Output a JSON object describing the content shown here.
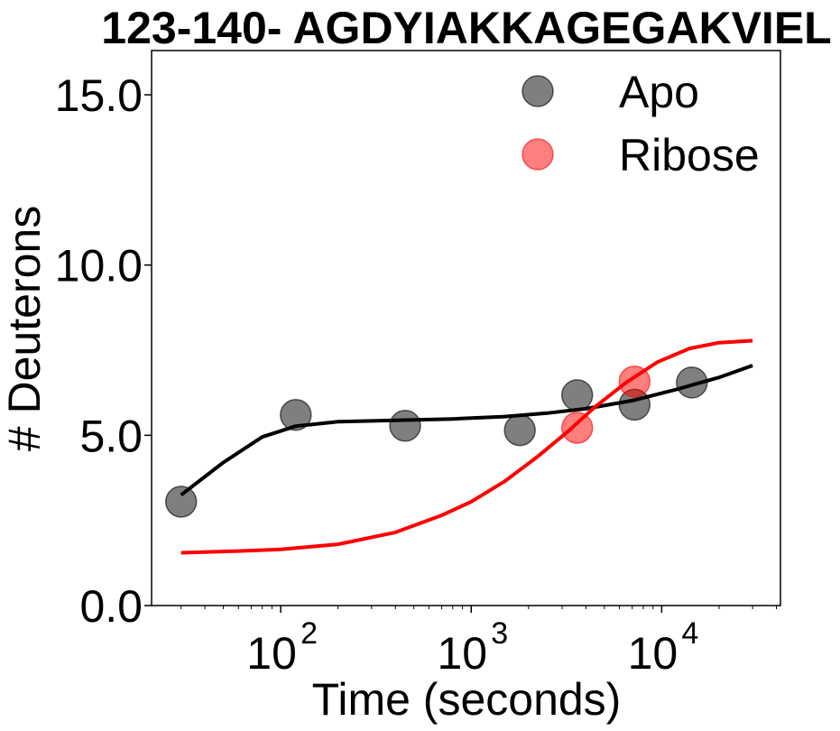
{
  "chart_data": {
    "type": "scatter",
    "title": "123-140- AGDYIAKKAGEGAKVIEL",
    "xlabel": "Time (seconds)",
    "ylabel": "# Deuterons",
    "xscale": "log",
    "xlim": [
      21,
      42000
    ],
    "ylim": [
      0,
      16.3
    ],
    "grid": false,
    "legend_position": "top-right",
    "yticks": [
      0,
      5,
      10,
      15
    ],
    "ytick_labels": [
      "0.0",
      "5.0",
      "10.0",
      "15.0"
    ],
    "xticks": [
      100,
      1000,
      10000
    ],
    "xtick_labels": [
      {
        "base": "10",
        "exp": "2"
      },
      {
        "base": "10",
        "exp": "3"
      },
      {
        "base": "10",
        "exp": "4"
      }
    ],
    "series": [
      {
        "name": "Apo",
        "color": "#000000",
        "marker_opacity": 0.5,
        "points": [
          {
            "x": 30,
            "y": 3.05
          },
          {
            "x": 120,
            "y": 5.6
          },
          {
            "x": 450,
            "y": 5.28
          },
          {
            "x": 1800,
            "y": 5.15
          },
          {
            "x": 3600,
            "y": 6.18
          },
          {
            "x": 7200,
            "y": 5.9
          },
          {
            "x": 14400,
            "y": 6.55
          }
        ],
        "fit": [
          {
            "x": 30,
            "y": 3.25
          },
          {
            "x": 50,
            "y": 4.2
          },
          {
            "x": 80,
            "y": 4.95
          },
          {
            "x": 120,
            "y": 5.27
          },
          {
            "x": 200,
            "y": 5.4
          },
          {
            "x": 400,
            "y": 5.44
          },
          {
            "x": 800,
            "y": 5.48
          },
          {
            "x": 1500,
            "y": 5.55
          },
          {
            "x": 2500,
            "y": 5.65
          },
          {
            "x": 4000,
            "y": 5.78
          },
          {
            "x": 7000,
            "y": 6.02
          },
          {
            "x": 12000,
            "y": 6.35
          },
          {
            "x": 20000,
            "y": 6.7
          },
          {
            "x": 30000,
            "y": 7.05
          }
        ]
      },
      {
        "name": "Ribose",
        "color": "#ff0000",
        "marker_opacity": 0.5,
        "points": [
          {
            "x": 3600,
            "y": 5.22
          },
          {
            "x": 7200,
            "y": 6.58
          }
        ],
        "fit": [
          {
            "x": 30,
            "y": 1.55
          },
          {
            "x": 60,
            "y": 1.6
          },
          {
            "x": 100,
            "y": 1.65
          },
          {
            "x": 200,
            "y": 1.8
          },
          {
            "x": 400,
            "y": 2.15
          },
          {
            "x": 700,
            "y": 2.65
          },
          {
            "x": 1000,
            "y": 3.05
          },
          {
            "x": 1500,
            "y": 3.65
          },
          {
            "x": 2200,
            "y": 4.35
          },
          {
            "x": 3200,
            "y": 5.1
          },
          {
            "x": 4500,
            "y": 5.85
          },
          {
            "x": 6500,
            "y": 6.55
          },
          {
            "x": 9500,
            "y": 7.15
          },
          {
            "x": 14000,
            "y": 7.55
          },
          {
            "x": 20000,
            "y": 7.72
          },
          {
            "x": 30000,
            "y": 7.78
          }
        ]
      }
    ]
  }
}
